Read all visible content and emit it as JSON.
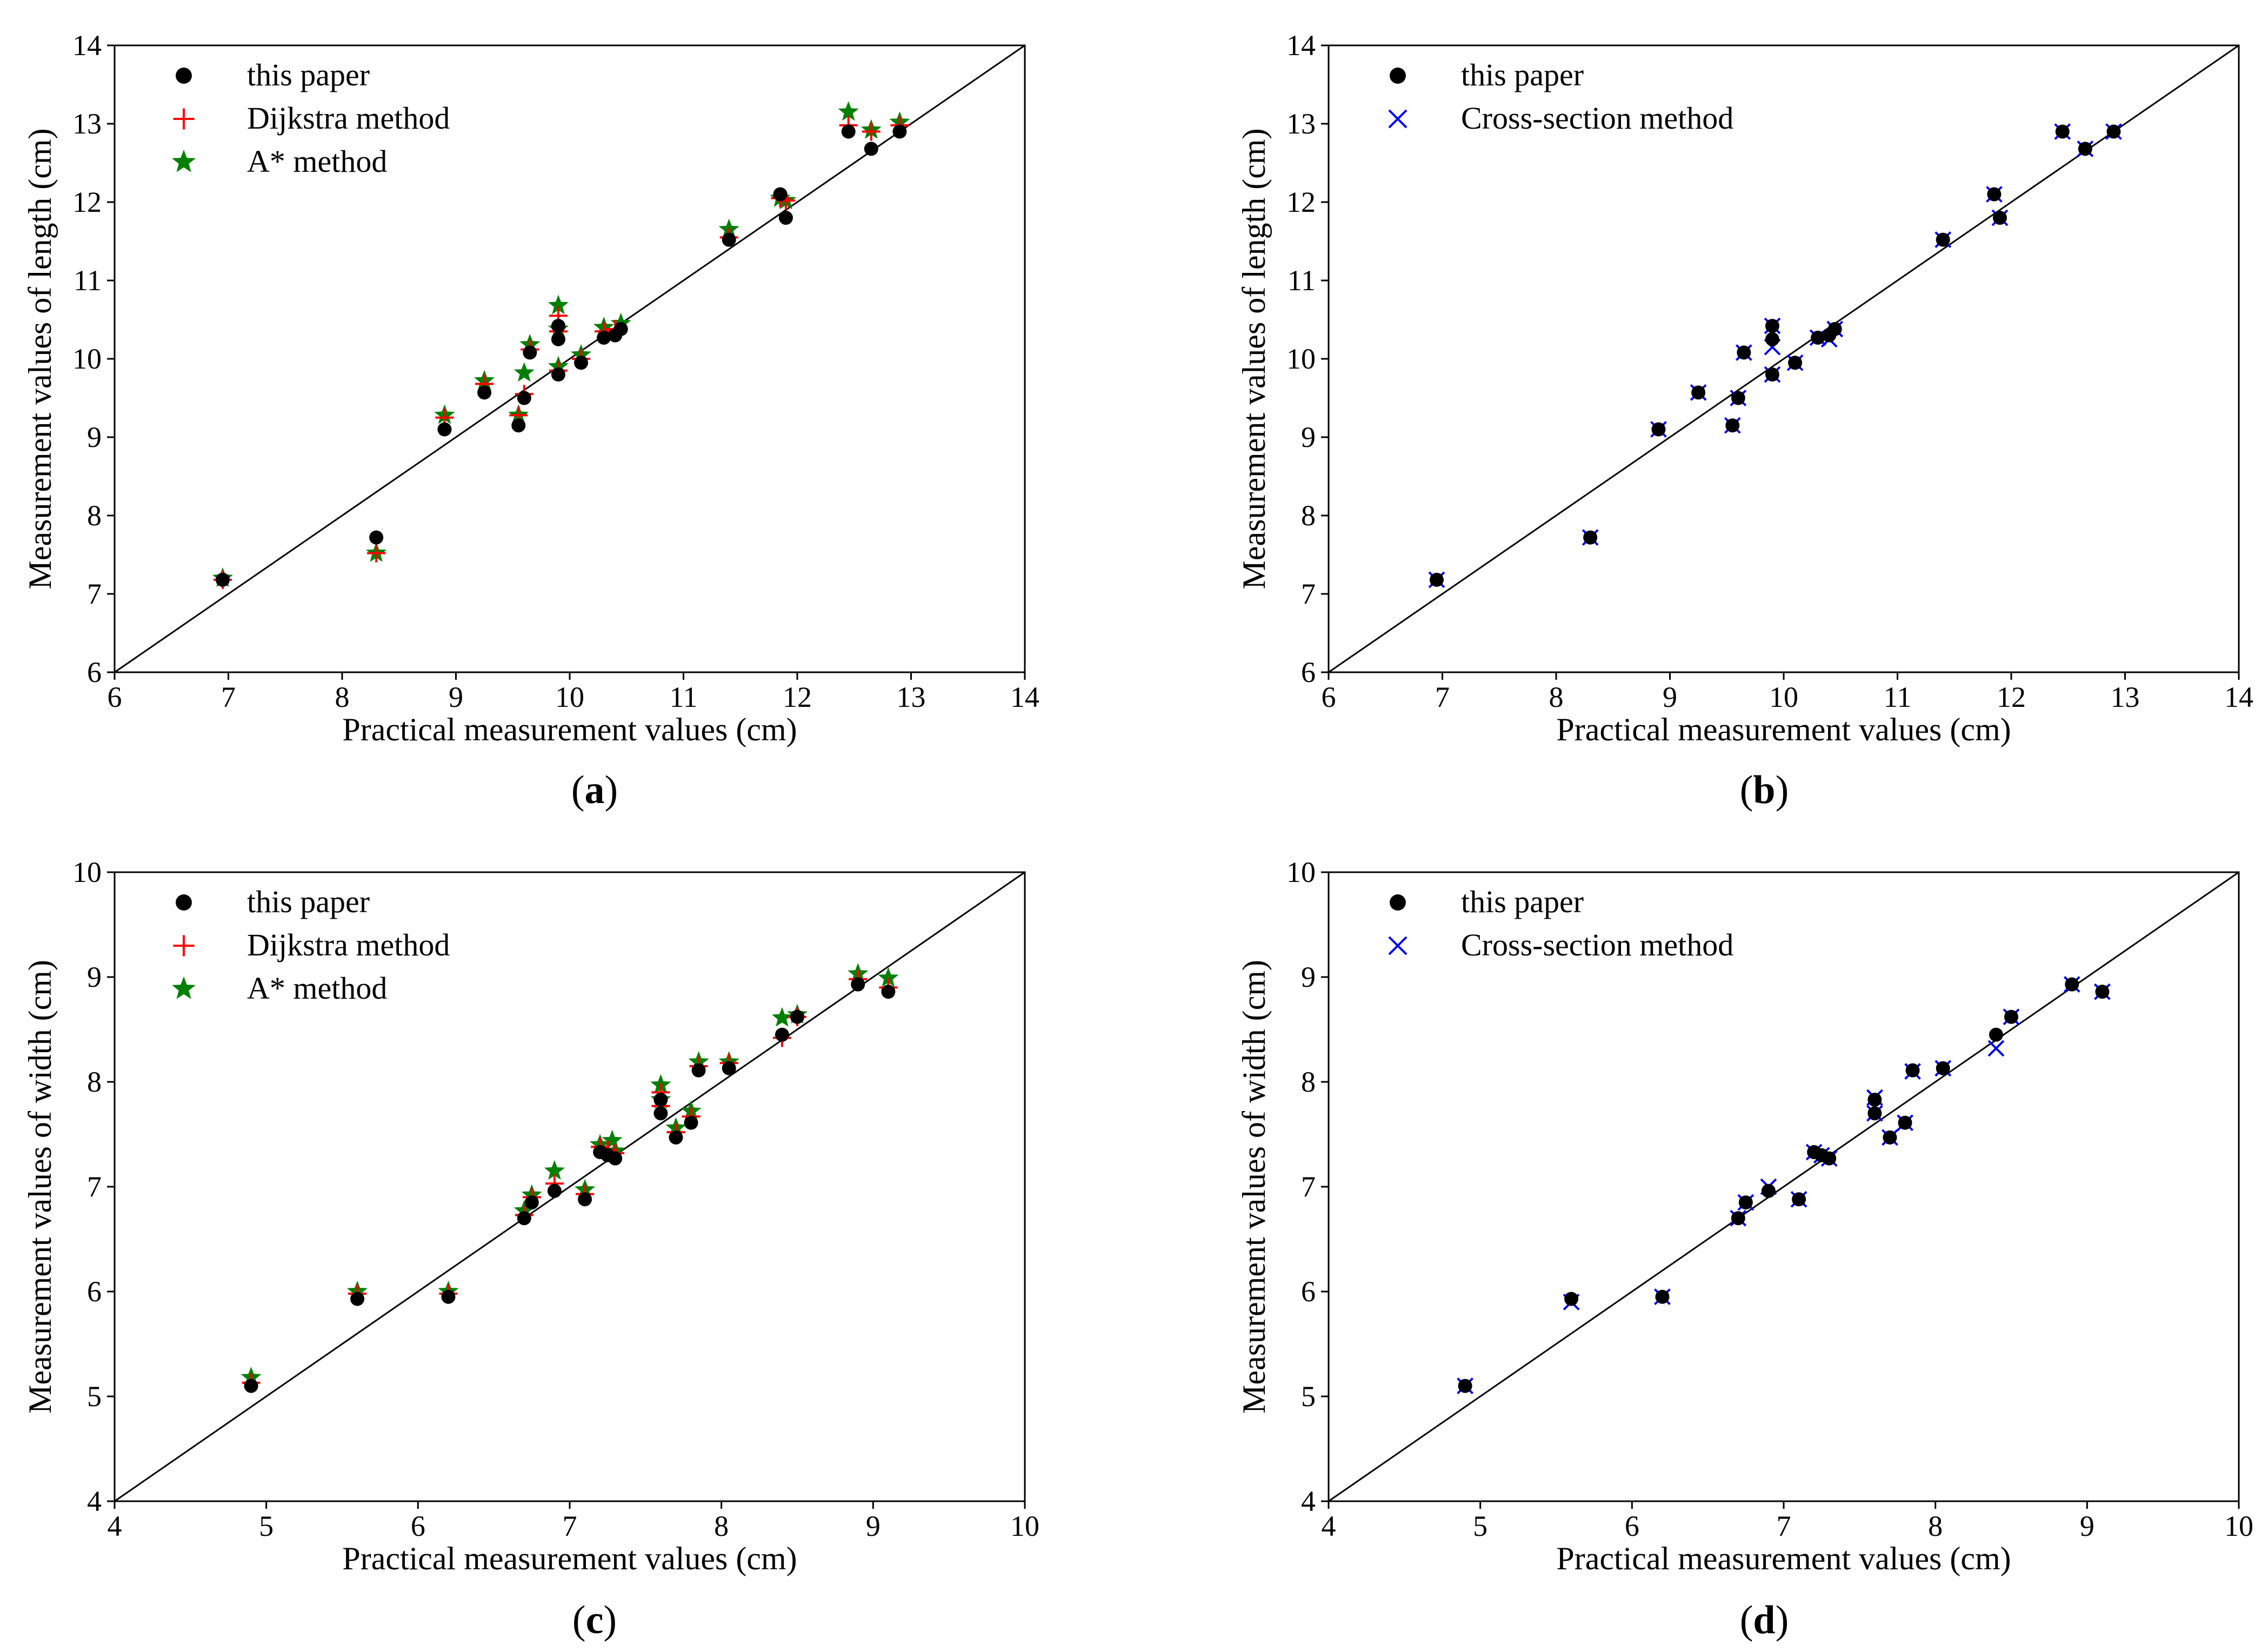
{
  "figure": {
    "panel_labels": [
      "(a)",
      "(b)",
      "(c)",
      "(d)"
    ]
  },
  "colors": {
    "this_paper": "#000000",
    "dijkstra": "#ff0000",
    "astar": "#008000",
    "cross_section": "#0000ff",
    "axes": "#000000"
  },
  "chart_data": [
    {
      "id": "a",
      "type": "scatter",
      "panel_label": "(a)",
      "xlabel": "Practical measurement values (cm)",
      "ylabel": "Measurement values of length (cm)",
      "xlim": [
        6,
        14
      ],
      "ylim": [
        6,
        14
      ],
      "xticks": [
        "6",
        "7",
        "8",
        "9",
        "10",
        "11",
        "12",
        "13",
        "14"
      ],
      "yticks": [
        "6",
        "7",
        "8",
        "9",
        "10",
        "11",
        "12",
        "13",
        "14"
      ],
      "reference_line": "y = x",
      "legend_position": "top-left",
      "series": [
        {
          "name": "this paper",
          "marker": "dot",
          "color": "#000000",
          "points": [
            [
              6.95,
              7.18
            ],
            [
              8.3,
              7.72
            ],
            [
              8.9,
              9.1
            ],
            [
              9.25,
              9.57
            ],
            [
              9.55,
              9.15
            ],
            [
              9.6,
              9.5
            ],
            [
              9.65,
              10.08
            ],
            [
              9.9,
              9.8
            ],
            [
              9.9,
              10.25
            ],
            [
              9.9,
              10.42
            ],
            [
              10.1,
              9.95
            ],
            [
              10.3,
              10.27
            ],
            [
              10.4,
              10.3
            ],
            [
              10.45,
              10.38
            ],
            [
              11.4,
              11.52
            ],
            [
              11.85,
              12.1
            ],
            [
              11.9,
              11.8
            ],
            [
              12.45,
              12.9
            ],
            [
              12.65,
              12.68
            ],
            [
              12.9,
              12.9
            ]
          ]
        },
        {
          "name": "Dijkstra method",
          "marker": "plus",
          "color": "#ff0000",
          "points": [
            [
              6.95,
              7.18
            ],
            [
              8.3,
              7.52
            ],
            [
              8.9,
              9.25
            ],
            [
              9.25,
              9.68
            ],
            [
              9.55,
              9.28
            ],
            [
              9.6,
              9.55
            ],
            [
              9.65,
              10.12
            ],
            [
              9.9,
              9.85
            ],
            [
              9.9,
              10.35
            ],
            [
              9.9,
              10.55
            ],
            [
              10.1,
              10.0
            ],
            [
              10.3,
              10.35
            ],
            [
              10.4,
              10.38
            ],
            [
              11.4,
              11.55
            ],
            [
              11.85,
              12.05
            ],
            [
              11.9,
              12.02
            ],
            [
              12.45,
              12.98
            ],
            [
              12.65,
              12.9
            ],
            [
              12.9,
              12.98
            ]
          ]
        },
        {
          "name": "A* method",
          "marker": "star",
          "color": "#008000",
          "points": [
            [
              6.95,
              7.2
            ],
            [
              8.3,
              7.52
            ],
            [
              8.9,
              9.28
            ],
            [
              9.25,
              9.72
            ],
            [
              9.55,
              9.28
            ],
            [
              9.6,
              9.82
            ],
            [
              9.65,
              10.18
            ],
            [
              9.9,
              9.9
            ],
            [
              9.9,
              10.38
            ],
            [
              9.9,
              10.68
            ],
            [
              10.1,
              10.05
            ],
            [
              10.3,
              10.4
            ],
            [
              10.45,
              10.45
            ],
            [
              11.4,
              11.65
            ],
            [
              11.85,
              12.05
            ],
            [
              11.9,
              12.02
            ],
            [
              12.45,
              13.15
            ],
            [
              12.65,
              12.92
            ],
            [
              12.9,
              13.02
            ]
          ]
        }
      ]
    },
    {
      "id": "b",
      "type": "scatter",
      "panel_label": "(b)",
      "xlabel": "Practical measurement values (cm)",
      "ylabel": "Measurement values of length (cm)",
      "xlim": [
        6,
        14
      ],
      "ylim": [
        6,
        14
      ],
      "xticks": [
        "6",
        "7",
        "8",
        "9",
        "10",
        "11",
        "12",
        "13",
        "14"
      ],
      "yticks": [
        "6",
        "7",
        "8",
        "9",
        "10",
        "11",
        "12",
        "13",
        "14"
      ],
      "reference_line": "y = x",
      "legend_position": "top-left",
      "series": [
        {
          "name": "this paper",
          "marker": "dot",
          "color": "#000000",
          "points": [
            [
              6.95,
              7.18
            ],
            [
              8.3,
              7.72
            ],
            [
              8.9,
              9.1
            ],
            [
              9.25,
              9.57
            ],
            [
              9.55,
              9.15
            ],
            [
              9.6,
              9.5
            ],
            [
              9.65,
              10.08
            ],
            [
              9.9,
              9.8
            ],
            [
              9.9,
              10.25
            ],
            [
              9.9,
              10.42
            ],
            [
              10.1,
              9.95
            ],
            [
              10.3,
              10.27
            ],
            [
              10.4,
              10.3
            ],
            [
              10.45,
              10.38
            ],
            [
              11.4,
              11.52
            ],
            [
              11.85,
              12.1
            ],
            [
              11.9,
              11.8
            ],
            [
              12.45,
              12.9
            ],
            [
              12.65,
              12.68
            ],
            [
              12.9,
              12.9
            ]
          ]
        },
        {
          "name": "Cross-section method",
          "marker": "x",
          "color": "#0000ff",
          "points": [
            [
              6.95,
              7.18
            ],
            [
              8.3,
              7.72
            ],
            [
              8.9,
              9.1
            ],
            [
              9.25,
              9.57
            ],
            [
              9.55,
              9.15
            ],
            [
              9.6,
              9.5
            ],
            [
              9.65,
              10.08
            ],
            [
              9.9,
              9.8
            ],
            [
              9.9,
              10.15
            ],
            [
              9.9,
              10.42
            ],
            [
              10.1,
              9.95
            ],
            [
              10.3,
              10.27
            ],
            [
              10.4,
              10.25
            ],
            [
              10.45,
              10.38
            ],
            [
              11.4,
              11.52
            ],
            [
              11.85,
              12.1
            ],
            [
              11.9,
              11.8
            ],
            [
              12.45,
              12.9
            ],
            [
              12.65,
              12.68
            ],
            [
              12.9,
              12.9
            ]
          ]
        }
      ]
    },
    {
      "id": "c",
      "type": "scatter",
      "panel_label": "(c)",
      "xlabel": "Practical measurement values (cm)",
      "ylabel": "Measurement values of width (cm)",
      "xlim": [
        4,
        10
      ],
      "ylim": [
        4,
        10
      ],
      "xticks": [
        "4",
        "5",
        "6",
        "7",
        "8",
        "9",
        "10"
      ],
      "yticks": [
        "4",
        "5",
        "6",
        "7",
        "8",
        "9",
        "10"
      ],
      "reference_line": "y = x",
      "legend_position": "top-left",
      "series": [
        {
          "name": "this paper",
          "marker": "dot",
          "color": "#000000",
          "points": [
            [
              4.9,
              5.1
            ],
            [
              5.6,
              5.93
            ],
            [
              6.2,
              5.95
            ],
            [
              6.7,
              6.7
            ],
            [
              6.75,
              6.85
            ],
            [
              6.9,
              6.96
            ],
            [
              7.1,
              6.88
            ],
            [
              7.2,
              7.33
            ],
            [
              7.25,
              7.3
            ],
            [
              7.3,
              7.27
            ],
            [
              7.6,
              7.7
            ],
            [
              7.6,
              7.83
            ],
            [
              7.7,
              7.47
            ],
            [
              7.8,
              7.61
            ],
            [
              7.85,
              8.11
            ],
            [
              8.05,
              8.13
            ],
            [
              8.4,
              8.45
            ],
            [
              8.5,
              8.62
            ],
            [
              8.9,
              8.93
            ],
            [
              9.1,
              8.86
            ]
          ]
        },
        {
          "name": "Dijkstra method",
          "marker": "plus",
          "color": "#ff0000",
          "points": [
            [
              4.9,
              5.13
            ],
            [
              5.6,
              5.98
            ],
            [
              6.2,
              5.98
            ],
            [
              6.7,
              6.73
            ],
            [
              6.75,
              6.9
            ],
            [
              6.9,
              7.03
            ],
            [
              7.1,
              6.93
            ],
            [
              7.2,
              7.38
            ],
            [
              7.25,
              7.35
            ],
            [
              7.3,
              7.32
            ],
            [
              7.6,
              7.77
            ],
            [
              7.6,
              7.9
            ],
            [
              7.7,
              7.52
            ],
            [
              7.8,
              7.67
            ],
            [
              7.85,
              8.15
            ],
            [
              8.05,
              8.18
            ],
            [
              8.4,
              8.42
            ],
            [
              8.5,
              8.62
            ],
            [
              8.9,
              8.98
            ],
            [
              9.1,
              8.9
            ]
          ]
        },
        {
          "name": "A* method",
          "marker": "star",
          "color": "#008000",
          "points": [
            [
              4.9,
              5.18
            ],
            [
              5.6,
              6.0
            ],
            [
              6.2,
              6.0
            ],
            [
              6.7,
              6.77
            ],
            [
              6.75,
              6.92
            ],
            [
              6.9,
              7.15
            ],
            [
              7.1,
              6.97
            ],
            [
              7.2,
              7.4
            ],
            [
              7.28,
              7.44
            ],
            [
              7.3,
              7.34
            ],
            [
              7.6,
              7.83
            ],
            [
              7.6,
              7.97
            ],
            [
              7.7,
              7.56
            ],
            [
              7.8,
              7.72
            ],
            [
              7.85,
              8.19
            ],
            [
              8.05,
              8.19
            ],
            [
              8.4,
              8.61
            ],
            [
              8.5,
              8.64
            ],
            [
              8.9,
              9.03
            ],
            [
              9.1,
              8.99
            ]
          ]
        }
      ]
    },
    {
      "id": "d",
      "type": "scatter",
      "panel_label": "(d)",
      "xlabel": "Practical measurement values (cm)",
      "ylabel": "Measurement values of width (cm)",
      "xlim": [
        4,
        10
      ],
      "ylim": [
        4,
        10
      ],
      "xticks": [
        "4",
        "5",
        "6",
        "7",
        "8",
        "9",
        "10"
      ],
      "yticks": [
        "4",
        "5",
        "6",
        "7",
        "8",
        "9",
        "10"
      ],
      "reference_line": "y = x",
      "legend_position": "top-left",
      "series": [
        {
          "name": "this paper",
          "marker": "dot",
          "color": "#000000",
          "points": [
            [
              4.9,
              5.1
            ],
            [
              5.6,
              5.93
            ],
            [
              6.2,
              5.95
            ],
            [
              6.7,
              6.7
            ],
            [
              6.75,
              6.85
            ],
            [
              6.9,
              6.96
            ],
            [
              7.1,
              6.88
            ],
            [
              7.2,
              7.33
            ],
            [
              7.25,
              7.3
            ],
            [
              7.3,
              7.27
            ],
            [
              7.6,
              7.7
            ],
            [
              7.6,
              7.83
            ],
            [
              7.7,
              7.47
            ],
            [
              7.8,
              7.61
            ],
            [
              7.85,
              8.11
            ],
            [
              8.05,
              8.13
            ],
            [
              8.4,
              8.45
            ],
            [
              8.5,
              8.62
            ],
            [
              8.9,
              8.93
            ],
            [
              9.1,
              8.86
            ]
          ]
        },
        {
          "name": "Cross-section method",
          "marker": "x",
          "color": "#0000ff",
          "points": [
            [
              4.9,
              5.1
            ],
            [
              5.6,
              5.9
            ],
            [
              6.2,
              5.95
            ],
            [
              6.7,
              6.7
            ],
            [
              6.75,
              6.85
            ],
            [
              6.9,
              7.0
            ],
            [
              7.1,
              6.88
            ],
            [
              7.2,
              7.33
            ],
            [
              7.25,
              7.3
            ],
            [
              7.3,
              7.27
            ],
            [
              7.6,
              7.7
            ],
            [
              7.6,
              7.85
            ],
            [
              7.7,
              7.47
            ],
            [
              7.8,
              7.61
            ],
            [
              7.85,
              8.1
            ],
            [
              8.05,
              8.13
            ],
            [
              8.4,
              8.32
            ],
            [
              8.5,
              8.62
            ],
            [
              8.9,
              8.93
            ],
            [
              9.1,
              8.86
            ]
          ]
        }
      ]
    }
  ]
}
